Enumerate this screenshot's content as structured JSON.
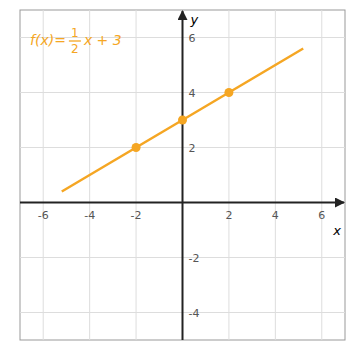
{
  "chart_data": {
    "type": "line",
    "xlabel": "x",
    "ylabel": "y",
    "xlim": [
      -7,
      7
    ],
    "ylim": [
      -5,
      7
    ],
    "xticks": [
      -6,
      -4,
      -2,
      2,
      4,
      6
    ],
    "yticks": [
      -4,
      -2,
      2,
      4,
      6
    ],
    "grid": true,
    "annotations": [
      "f(x)=",
      "1",
      "2",
      "x + 3"
    ],
    "series": [
      {
        "type": "line",
        "color": "#F5A623",
        "x": [
          -5.2,
          5.2
        ],
        "values": [
          0.4,
          5.6
        ]
      },
      {
        "type": "scatter",
        "color": "#F5A623",
        "marker": "circle",
        "x": [
          -2,
          0,
          2
        ],
        "values": [
          2,
          3,
          4
        ]
      }
    ]
  }
}
